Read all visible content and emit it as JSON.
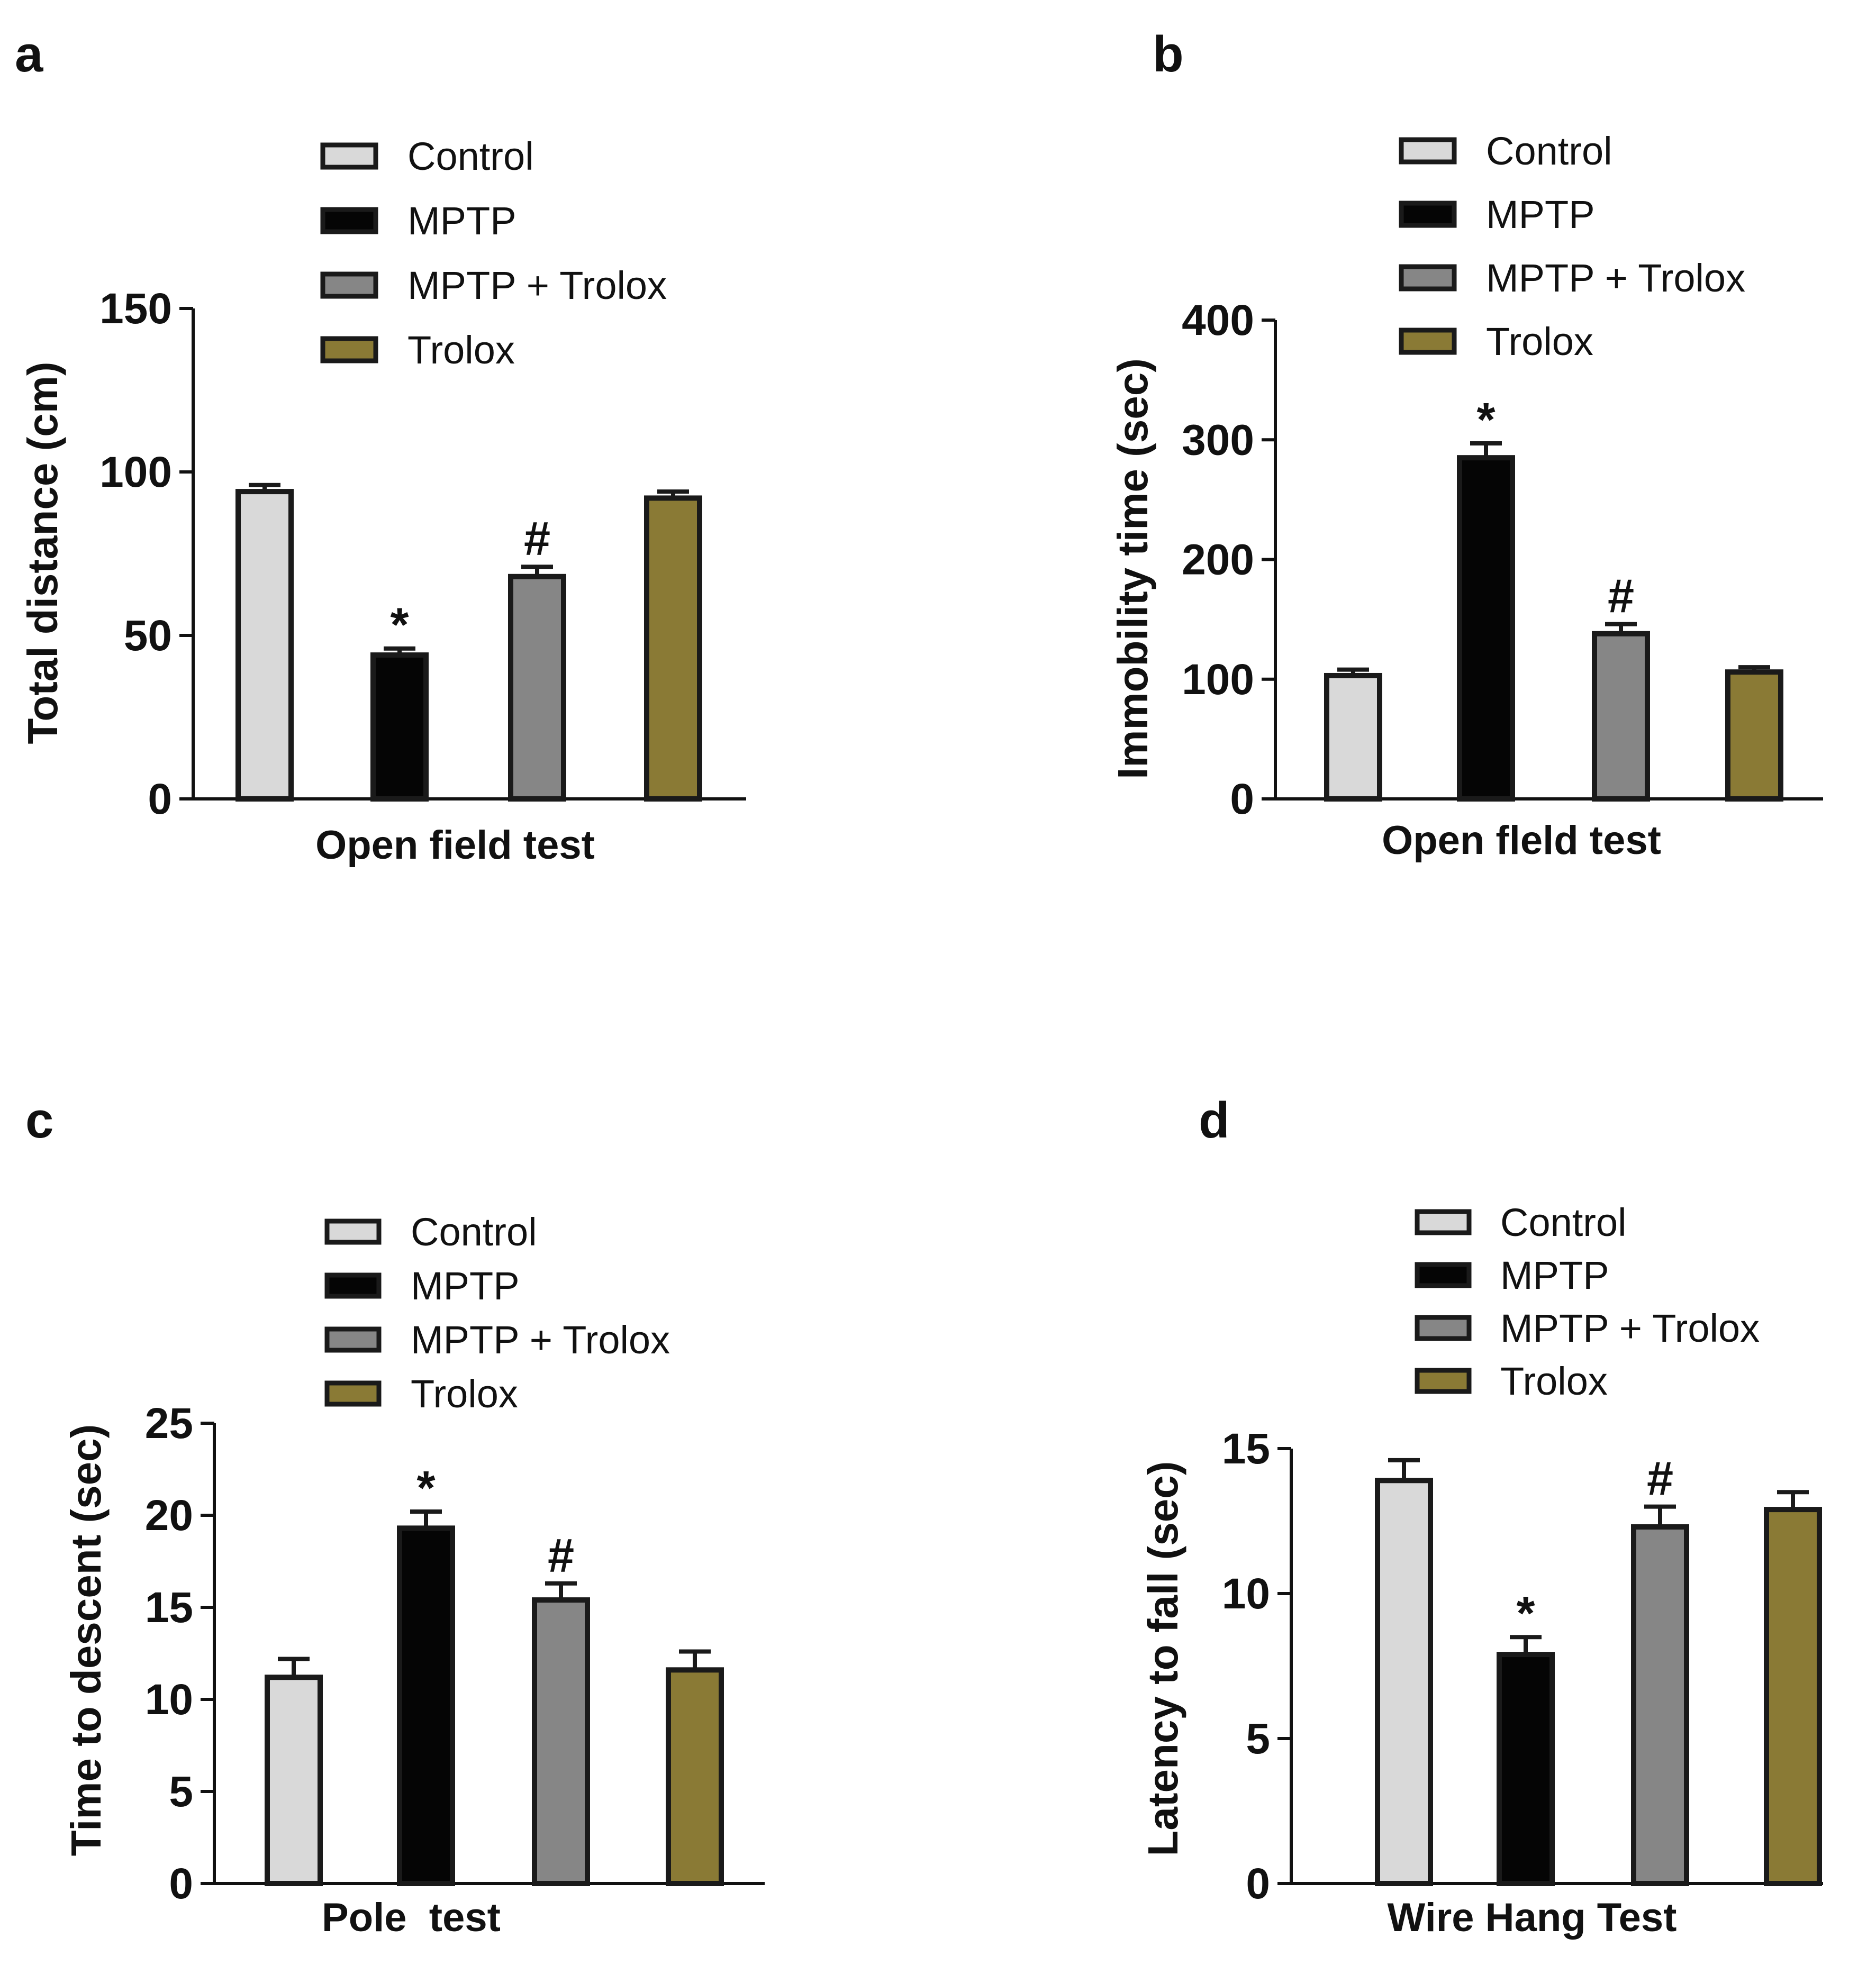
{
  "colors": {
    "Control": "#d9d9d9",
    "MPTP": "#050505",
    "MPTP + Trolox": "#868686",
    "Trolox": "#8a7a35",
    "outline": "#1a1a1a"
  },
  "chart_data": [
    {
      "panel": "a",
      "type": "bar",
      "categories": [
        "Control",
        "MPTP",
        "MPTP + Trolox",
        "Trolox"
      ],
      "legend": [
        "Control",
        "MPTP",
        "MPTP + Trolox",
        "Trolox"
      ],
      "values": [
        94,
        44,
        68,
        92
      ],
      "errors": [
        2,
        2,
        3,
        2
      ],
      "significance": [
        "",
        "*",
        "#",
        ""
      ],
      "ylabel": "Total distance (cm)",
      "xlabel": "Open field test",
      "ylim": [
        0,
        150
      ],
      "yticks": [
        "0",
        "50",
        "100",
        "150"
      ]
    },
    {
      "panel": "b",
      "type": "bar",
      "categories": [
        "Control",
        "MPTP",
        "MPTP + Trolox",
        "Trolox"
      ],
      "legend": [
        "Control",
        "MPTP",
        "MPTP + Trolox",
        "Trolox"
      ],
      "values": [
        103,
        285,
        138,
        106
      ],
      "errors": [
        5,
        12,
        8,
        4
      ],
      "significance": [
        "",
        "*",
        "#",
        ""
      ],
      "ylabel": "Immobility time (sec)",
      "xlabel": "Open fleld test",
      "ylim": [
        0,
        400
      ],
      "yticks": [
        "0",
        "100",
        "200",
        "300",
        "400"
      ]
    },
    {
      "panel": "c",
      "type": "bar",
      "categories": [
        "Control",
        "MPTP",
        "MPTP + Trolox",
        "Trolox"
      ],
      "legend": [
        "Control",
        "MPTP",
        "MPTP + Trolox",
        "Trolox"
      ],
      "values": [
        11.2,
        19.3,
        15.4,
        11.6
      ],
      "errors": [
        1.0,
        0.9,
        0.9,
        1.0
      ],
      "significance": [
        "",
        "*",
        "#",
        ""
      ],
      "ylabel": "Time to descent (sec)",
      "xlabel": "Pole  test",
      "ylim": [
        0,
        25
      ],
      "yticks": [
        "0",
        "5",
        "10",
        "15",
        "20",
        "25"
      ]
    },
    {
      "panel": "d",
      "type": "bar",
      "categories": [
        "Control",
        "MPTP",
        "MPTP + Trolox",
        "Trolox"
      ],
      "legend": [
        "Control",
        "MPTP",
        "MPTP + Trolox",
        "Trolox"
      ],
      "values": [
        13.9,
        7.9,
        12.3,
        12.9
      ],
      "errors": [
        0.7,
        0.6,
        0.7,
        0.6
      ],
      "significance": [
        "",
        "*",
        "#",
        ""
      ],
      "ylabel": "Latency to fall (sec)",
      "xlabel": "Wire Hang Test",
      "ylim": [
        0,
        15
      ],
      "yticks": [
        "0",
        "5",
        "10",
        "15"
      ]
    }
  ]
}
